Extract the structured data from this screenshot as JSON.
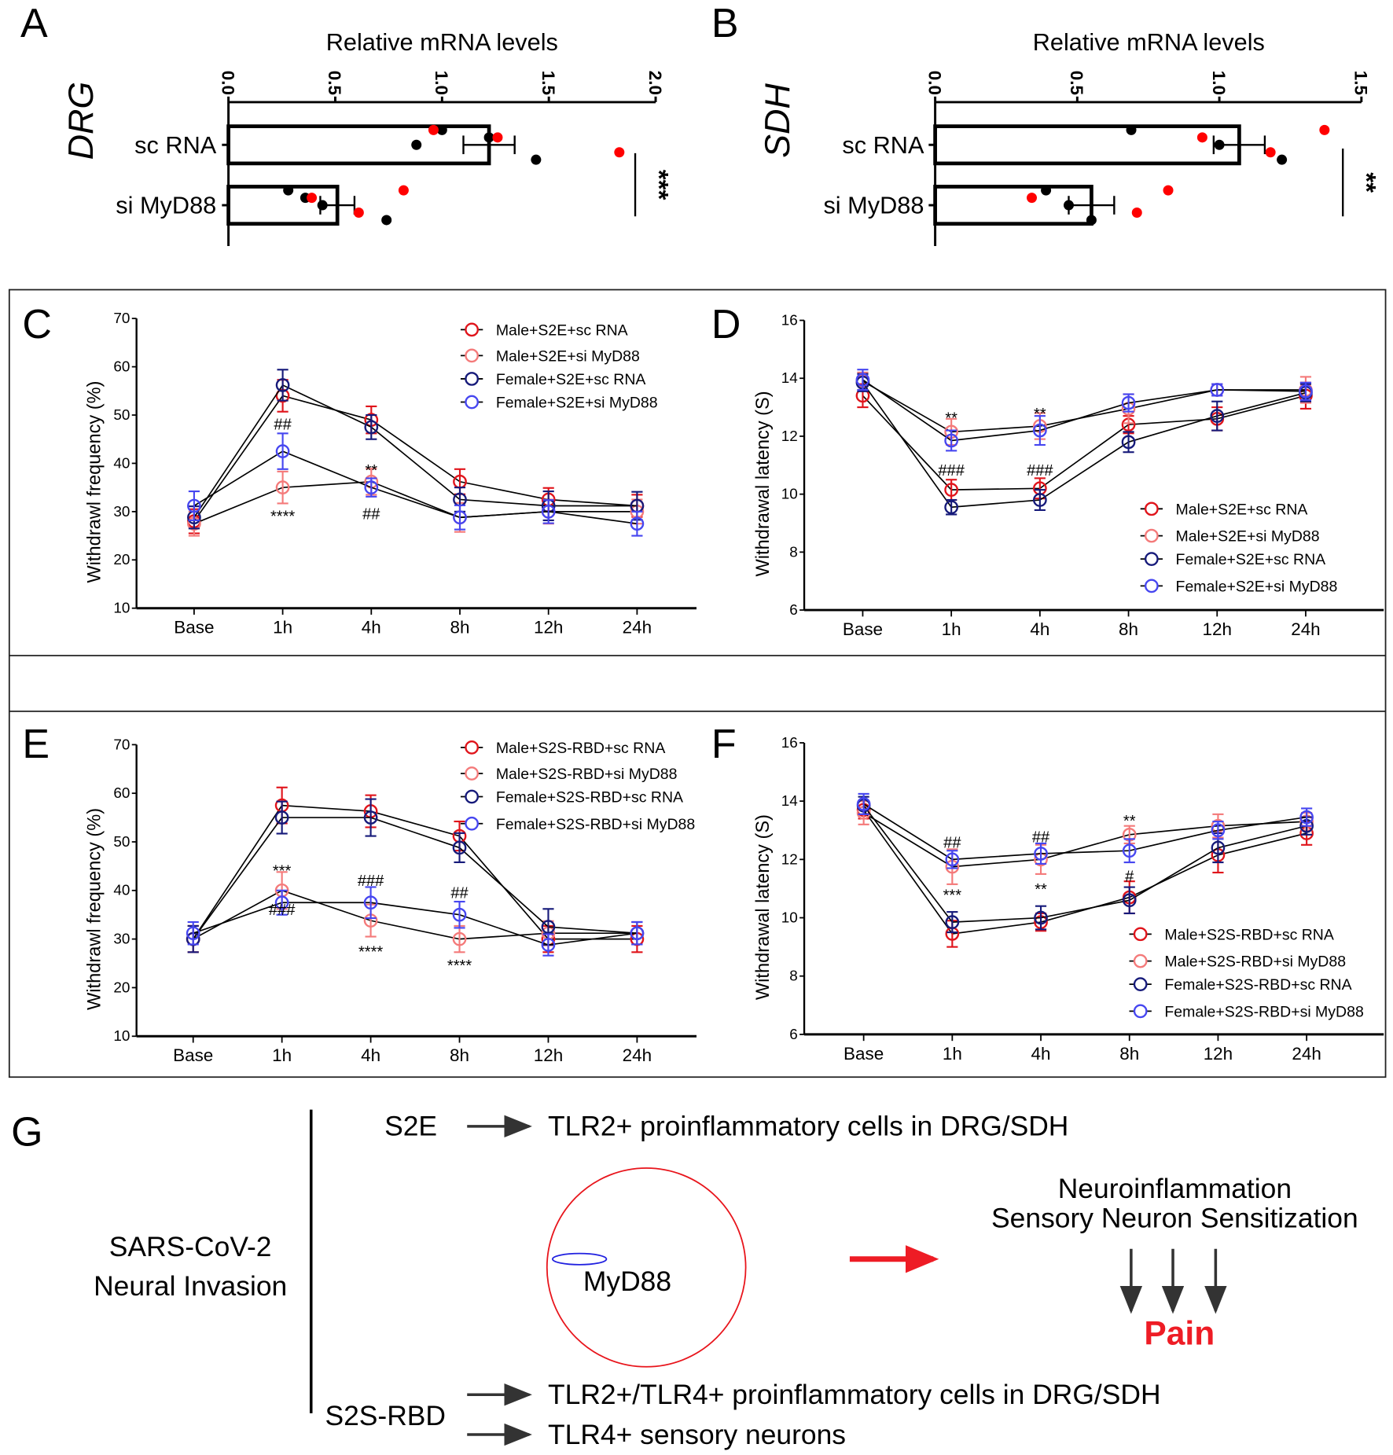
{
  "panels": {
    "A": "A",
    "B": "B",
    "C": "C",
    "D": "D",
    "E": "E",
    "F": "F",
    "G": "G"
  },
  "colors": {
    "male_sc": "#e0141b",
    "male_si": "#f47a7a",
    "female_sc": "#161a7a",
    "female_si": "#4646f0",
    "dot_black": "#000000",
    "dot_red": "#ff0000"
  },
  "chart_data": [
    {
      "id": "A",
      "type": "bar",
      "orientation": "horizontal",
      "title": "Relative mRNA levels",
      "ylabel": "DRG",
      "categories": [
        "sc RNA",
        "si MyD88"
      ],
      "values": [
        1.22,
        0.51
      ],
      "errors": [
        0.12,
        0.08
      ],
      "points_black": [
        [
          1.0,
          0.88,
          1.44,
          1.22
        ],
        [
          0.28,
          0.44,
          0.74,
          0.36
        ]
      ],
      "points_red": [
        [
          1.26,
          1.83,
          0.96
        ],
        [
          0.39,
          0.61,
          0.82
        ]
      ],
      "xlim": [
        0,
        2.0
      ],
      "ticks": [
        "0.0",
        "0.5",
        "1.0",
        "1.5",
        "2.0"
      ],
      "significance": "***"
    },
    {
      "id": "B",
      "type": "bar",
      "orientation": "horizontal",
      "title": "Relative mRNA levels",
      "ylabel": "SDH",
      "categories": [
        "sc RNA",
        "si MyD88"
      ],
      "values": [
        1.07,
        0.55
      ],
      "errors": [
        0.09,
        0.08
      ],
      "points_black": [
        [
          0.69,
          1.0,
          1.22
        ],
        [
          0.39,
          0.47,
          0.55
        ]
      ],
      "points_red": [
        [
          0.94,
          1.18,
          1.37
        ],
        [
          0.34,
          0.71,
          0.82
        ]
      ],
      "xlim": [
        0,
        1.5
      ],
      "ticks": [
        "0.0",
        "0.5",
        "1.0",
        "1.5"
      ],
      "significance": "**"
    },
    {
      "id": "C",
      "type": "line",
      "ylabel": "Withdrawl frequency (%)",
      "categories": [
        "Base",
        "1h",
        "4h",
        "8h",
        "12h",
        "24h"
      ],
      "ylim": [
        10,
        70
      ],
      "yticks": [
        10,
        20,
        30,
        40,
        50,
        60,
        70
      ],
      "legend": "top-right",
      "series": [
        {
          "name": "Male+S2E+sc RNA",
          "color": "#e0141b",
          "values": [
            28,
            54,
            49,
            36.2,
            32.5,
            31.2
          ],
          "errors": [
            2.5,
            3.3,
            2.8,
            2.6,
            2.4,
            2.3
          ]
        },
        {
          "name": "Male+S2E+si MyD88",
          "color": "#f47a7a",
          "values": [
            27.5,
            35,
            36.2,
            28.8,
            30,
            30
          ],
          "errors": [
            2.5,
            3.3,
            2.7,
            3,
            2.5,
            2.5
          ]
        },
        {
          "name": "Female+S2E+sc RNA",
          "color": "#161a7a",
          "values": [
            28.8,
            56.2,
            47.5,
            32.5,
            31.2,
            31.2
          ],
          "errors": [
            2.3,
            3.2,
            2.5,
            2.5,
            3,
            2.9
          ]
        },
        {
          "name": "Female+S2E+si MyD88",
          "color": "#4646f0",
          "values": [
            31.2,
            42.5,
            35,
            28.8,
            30,
            27.5
          ],
          "errors": [
            3,
            3.7,
            1.9,
            2.5,
            2.4,
            2.5
          ]
        }
      ],
      "annotations": [
        {
          "x": "1h",
          "y": 48.5,
          "text": "##"
        },
        {
          "x": "1h",
          "y": 29.5,
          "text": "****"
        },
        {
          "x": "4h",
          "y": 39,
          "text": "**"
        },
        {
          "x": "4h",
          "y": 30,
          "text": "##"
        }
      ]
    },
    {
      "id": "D",
      "type": "line",
      "ylabel": "Withdrawal latency (S)",
      "categories": [
        "Base",
        "1h",
        "4h",
        "8h",
        "12h",
        "24h"
      ],
      "ylim": [
        6,
        16
      ],
      "yticks": [
        6,
        8,
        10,
        12,
        14,
        16
      ],
      "legend": "bottom-right",
      "series": [
        {
          "name": "Male+S2E+sc RNA",
          "color": "#e0141b",
          "values": [
            13.4,
            10.15,
            10.2,
            12.4,
            12.6,
            13.4
          ],
          "errors": [
            0.4,
            0.35,
            0.35,
            0.3,
            0.4,
            0.45
          ]
        },
        {
          "name": "Male+S2E+si MyD88",
          "color": "#f47a7a",
          "values": [
            13.9,
            12.15,
            12.35,
            12.95,
            13.6,
            13.6
          ],
          "errors": [
            0.3,
            0.45,
            0.45,
            0.5,
            0.2,
            0.45
          ]
        },
        {
          "name": "Female+S2E+sc RNA",
          "color": "#161a7a",
          "values": [
            13.85,
            9.55,
            9.8,
            11.8,
            12.7,
            13.5
          ],
          "errors": [
            0.3,
            0.25,
            0.35,
            0.35,
            0.5,
            0.3
          ]
        },
        {
          "name": "Female+S2E+si MyD88",
          "color": "#4646f0",
          "values": [
            13.95,
            11.85,
            12.2,
            13.15,
            13.6,
            13.55
          ],
          "errors": [
            0.35,
            0.35,
            0.5,
            0.3,
            0.2,
            0.3
          ]
        }
      ],
      "annotations": [
        {
          "x": "1h",
          "y": 12.7,
          "text": "**"
        },
        {
          "x": "1h",
          "y": 10.9,
          "text": "###"
        },
        {
          "x": "4h",
          "y": 12.85,
          "text": "**"
        },
        {
          "x": "4h",
          "y": 10.9,
          "text": "###"
        }
      ]
    },
    {
      "id": "E",
      "type": "line",
      "ylabel": "Withdrawl frequency (%)",
      "categories": [
        "Base",
        "1h",
        "4h",
        "8h",
        "12h",
        "24h"
      ],
      "ylim": [
        10,
        70
      ],
      "yticks": [
        10,
        20,
        30,
        40,
        50,
        60,
        70
      ],
      "legend": "top-right",
      "series": [
        {
          "name": "Male+S2S-RBD+sc RNA",
          "color": "#e0141b",
          "values": [
            30,
            57.5,
            56.3,
            51.2,
            30,
            30
          ],
          "errors": [
            2.7,
            3.7,
            3.3,
            3,
            2.7,
            2.7
          ]
        },
        {
          "name": "Male+S2S-RBD+si MyD88",
          "color": "#f47a7a",
          "values": [
            30,
            40,
            33.8,
            30,
            31.2,
            31.2
          ],
          "errors": [
            2.7,
            3.8,
            3.3,
            2.7,
            2.5,
            2.3
          ]
        },
        {
          "name": "Female+S2S-RBD+sc RNA",
          "color": "#161a7a",
          "values": [
            30,
            55,
            55,
            48.8,
            32.5,
            31.2
          ],
          "errors": [
            2.7,
            3.3,
            3.8,
            3,
            3.7,
            2.3
          ]
        },
        {
          "name": "Female+S2S-RBD+si MyD88",
          "color": "#4646f0",
          "values": [
            31.2,
            37.5,
            37.5,
            35,
            28.8,
            31.2
          ],
          "errors": [
            2.3,
            2.5,
            3.2,
            2.7,
            2.2,
            2.3
          ]
        }
      ],
      "annotations": [
        {
          "x": "1h",
          "y": 44.5,
          "text": "***"
        },
        {
          "x": "1h",
          "y": 36.5,
          "text": "###"
        },
        {
          "x": "4h",
          "y": 42.5,
          "text": "###"
        },
        {
          "x": "4h",
          "y": 27.8,
          "text": "****"
        },
        {
          "x": "8h",
          "y": 40,
          "text": "##"
        },
        {
          "x": "8h",
          "y": 25,
          "text": "****"
        }
      ]
    },
    {
      "id": "F",
      "type": "line",
      "ylabel": "Withdrawal latency (S)",
      "categories": [
        "Base",
        "1h",
        "4h",
        "8h",
        "12h",
        "24h"
      ],
      "ylim": [
        6,
        16
      ],
      "yticks": [
        6,
        8,
        10,
        12,
        14,
        16
      ],
      "legend": "bottom-right",
      "series": [
        {
          "name": "Male+S2S-RBD+sc RNA",
          "color": "#e0141b",
          "values": [
            13.7,
            9.45,
            9.85,
            10.7,
            12.15,
            12.9
          ],
          "errors": [
            0.3,
            0.45,
            0.3,
            0.55,
            0.6,
            0.4
          ]
        },
        {
          "name": "Male+S2S-RBD+si MyD88",
          "color": "#f47a7a",
          "values": [
            13.6,
            11.75,
            12.0,
            12.85,
            13.15,
            13.3
          ],
          "errors": [
            0.4,
            0.6,
            0.5,
            0.3,
            0.4,
            0.3
          ]
        },
        {
          "name": "Female+S2S-RBD+sc RNA",
          "color": "#161a7a",
          "values": [
            13.85,
            9.85,
            10.0,
            10.6,
            12.4,
            13.15
          ],
          "errors": [
            0.3,
            0.35,
            0.4,
            0.45,
            0.5,
            0.3
          ]
        },
        {
          "name": "Female+S2S-RBD+si MyD88",
          "color": "#4646f0",
          "values": [
            13.9,
            12.0,
            12.2,
            12.3,
            13.0,
            13.45
          ],
          "errors": [
            0.35,
            0.3,
            0.35,
            0.4,
            0.3,
            0.3
          ]
        }
      ],
      "annotations": [
        {
          "x": "1h",
          "y": 12.65,
          "text": "##"
        },
        {
          "x": "1h",
          "y": 10.85,
          "text": "***"
        },
        {
          "x": "4h",
          "y": 12.85,
          "text": "##"
        },
        {
          "x": "4h",
          "y": 11.05,
          "text": "**"
        },
        {
          "x": "8h",
          "y": 13.4,
          "text": "**"
        },
        {
          "x": "8h",
          "y": 11.5,
          "text": "#"
        }
      ]
    }
  ],
  "diagram": {
    "source": [
      "SARS-CoV-2",
      "Neural Invasion"
    ],
    "s2e": "S2E",
    "s2e_target": "TLR2+ proinflammatory cells in DRG/SDH",
    "myd88": "MyD88",
    "outcome": [
      "Neuroinflammation",
      "Sensory Neuron Sensitization"
    ],
    "pain": "Pain",
    "s2s": "S2S-RBD",
    "s2s_target1": "TLR2+/TLR4+ proinflammatory cells in DRG/SDH",
    "s2s_target2": "TLR4+ sensory neurons"
  }
}
